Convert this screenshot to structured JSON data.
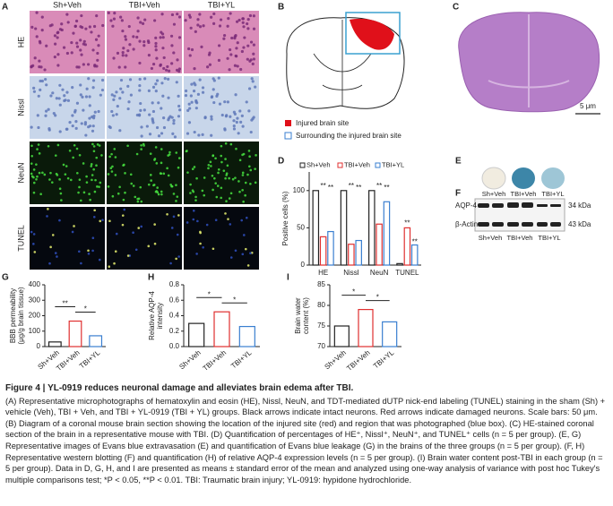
{
  "panels": [
    "A",
    "B",
    "C",
    "D",
    "E",
    "F",
    "G",
    "H",
    "I"
  ],
  "micrographs": {
    "columns": [
      "Sh+Veh",
      "TBI+Veh",
      "TBI+YL"
    ],
    "rows": [
      "HE",
      "Nissl",
      "NeuN",
      "TUNEL"
    ]
  },
  "diagram": {
    "legend": [
      "Injured brain site",
      "Surrounding the injured brain site"
    ]
  },
  "section": {
    "scale": "5 μm"
  },
  "evans": {
    "labels": [
      "Sh+Veh",
      "TBI+Veh",
      "TBI+YL"
    ]
  },
  "blot": {
    "rows": [
      "AQP-4",
      "β-Actin"
    ],
    "sizes": [
      "34 kDa",
      "43 kDa"
    ],
    "lanes": [
      "Sh+Veh",
      "TBI+Veh",
      "TBI+YL"
    ]
  },
  "chart_data": [
    {
      "type": "bar",
      "ylabel": [
        "Positive cells (%)"
      ],
      "categories": [
        "HE",
        "Nissl",
        "NeuN",
        "TUNEL"
      ],
      "series": [
        {
          "name": "Sh+Veh",
          "color": "#222222",
          "values": [
            100,
            100,
            100,
            2
          ]
        },
        {
          "name": "TBI+Veh",
          "color": "#e03030",
          "values": [
            38,
            28,
            55,
            50
          ]
        },
        {
          "name": "TBI+YL",
          "color": "#3a7fd0",
          "values": [
            45,
            33,
            85,
            27
          ]
        }
      ],
      "ylim": [
        0,
        125
      ],
      "yticks": [
        0,
        50,
        100
      ],
      "annotations": [
        "**",
        "**",
        "**",
        "**",
        "**",
        "**",
        "**",
        "**"
      ]
    },
    {
      "type": "bar",
      "ylabel": [
        "BBB permeability",
        "(μg/g brain tissue)"
      ],
      "categories": [
        "Sh+Veh",
        "TBI+Veh",
        "TBI+YL"
      ],
      "values": [
        30,
        165,
        70
      ],
      "colors": [
        "#222222",
        "#e03030",
        "#3a7fd0"
      ],
      "ylim": [
        0,
        400
      ],
      "yticks": [
        0,
        100,
        200,
        300,
        400
      ],
      "annotations": [
        "**",
        "*"
      ]
    },
    {
      "type": "bar",
      "ylabel": [
        "Relative AQP-4",
        "intensity"
      ],
      "categories": [
        "Sh+Veh",
        "TBI+Veh",
        "TBI+YL"
      ],
      "values": [
        0.3,
        0.45,
        0.26
      ],
      "colors": [
        "#222222",
        "#e03030",
        "#3a7fd0"
      ],
      "ylim": [
        0,
        0.8
      ],
      "yticks": [
        {
          "value": 0,
          "label": "0.0"
        },
        0.2,
        0.4,
        0.6,
        0.8
      ],
      "annotations": [
        "*",
        "*"
      ]
    },
    {
      "type": "bar",
      "ylabel": [
        "Brain water",
        "content (%)"
      ],
      "categories": [
        "Sh+Veh",
        "TBI+Veh",
        "TBI+YL"
      ],
      "values": [
        75,
        79,
        76
      ],
      "colors": [
        "#222222",
        "#e03030",
        "#3a7fd0"
      ],
      "ylim": [
        70,
        85
      ],
      "yticks": [
        70,
        75,
        80,
        85
      ],
      "annotations": [
        "*",
        "*"
      ]
    }
  ],
  "caption": {
    "title": "Figure 4 | YL-0919 reduces neuronal damage and alleviates brain edema after TBI.",
    "body": "(A) Representative microphotographs of hematoxylin and eosin (HE), Nissl, NeuN, and TDT-mediated dUTP nick-end labeling (TUNEL) staining in the sham (Sh) + vehicle (Veh), TBI + Veh, and TBI + YL-0919 (TBI + YL) groups. Black arrows indicate intact neurons. Red arrows indicate damaged neurons. Scale bars: 50 μm. (B) Diagram of a coronal mouse brain section showing the location of the injured site (red) and region that was photographed (blue box). (C) HE-stained coronal section of the brain in a representative mouse with TBI. (D) Quantification of percentages of HE⁺, Nissl⁺, NeuN⁺, and TUNEL⁺ cells (n = 5 per group). (E, G) Representative images of Evans blue extravasation (E) and quantification of Evans blue leakage (G) in the brains of the three groups (n = 5 per group). (F, H) Representative western blotting (F) and quantification (H) of relative AQP-4 expression levels (n = 5 per group). (I) Brain water content post-TBI in each group (n = 5 per group). Data in D, G, H, and I are presented as means ± standard error of the mean and analyzed using one-way analysis of variance with post hoc Tukey's multiple comparisons test; *P < 0.05, **P < 0.01. TBI: Traumatic brain injury; YL-0919: hypidone hydrochloride."
  }
}
